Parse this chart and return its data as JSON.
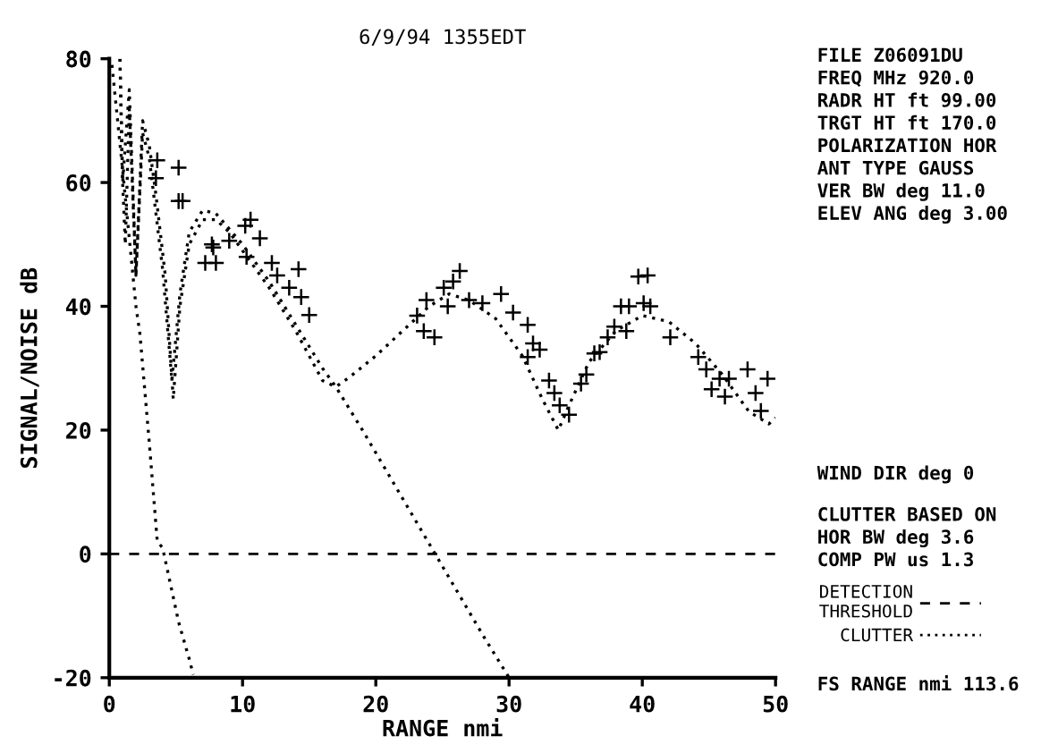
{
  "chart_data": {
    "type": "line",
    "title": "6/9/94 1355EDT",
    "xlabel": "RANGE nmi",
    "ylabel": "SIGNAL/NOISE dB",
    "xlim": [
      0,
      50
    ],
    "ylim": [
      -20,
      80
    ],
    "xticks": [
      0,
      10,
      20,
      30,
      40,
      50
    ],
    "yticks": [
      -20,
      0,
      20,
      40,
      60,
      80
    ],
    "grid": false,
    "legend": "right",
    "series": [
      {
        "color": "#000000",
        "line_style": "dotted",
        "marker": "none",
        "x": [
          0.8,
          1,
          1.2,
          1.5,
          2,
          2.5,
          3,
          3.5,
          4.2,
          4.8,
          5.3,
          6,
          7,
          8,
          9,
          10,
          12,
          14,
          16,
          17,
          18,
          20,
          22,
          24,
          25.5,
          27,
          29,
          31,
          32.5,
          33.7,
          34.5,
          36,
          38,
          40,
          42,
          44,
          46,
          48,
          49.5,
          50
        ],
        "values": [
          80,
          60,
          50,
          72,
          45,
          70,
          66,
          58,
          45,
          25,
          40,
          50,
          54,
          54,
          52,
          49,
          43,
          36,
          28,
          27,
          28.5,
          32,
          36,
          40,
          42,
          41,
          38,
          32,
          25,
          20,
          24,
          31,
          36,
          38.5,
          37.5,
          34,
          29,
          23,
          21,
          22
        ]
      },
      {
        "color": "#000000",
        "line_style": "dotted",
        "marker": "none",
        "x": [
          0.8,
          1,
          1.5,
          2,
          2.5,
          3,
          4,
          4.7,
          5.3,
          6,
          7,
          8,
          10,
          12,
          14,
          16,
          17,
          19,
          22,
          25,
          28,
          30
        ],
        "values": [
          80,
          60,
          75,
          45,
          68,
          64,
          46,
          28,
          42,
          52,
          55.5,
          55,
          50,
          44,
          37,
          30,
          27,
          20,
          9,
          -2,
          -13,
          -20
        ]
      },
      {
        "name": "CLUTTER",
        "color": "#000000",
        "line_style": "dotted",
        "marker": "none",
        "x": [
          0.2,
          1,
          2,
          2.3,
          3,
          3.6,
          4,
          4.6,
          5.2,
          6,
          6.3
        ],
        "values": [
          79,
          62,
          40,
          35.5,
          18,
          2,
          1,
          -5,
          -11,
          -17,
          -19.5
        ]
      },
      {
        "type": "scatter",
        "color": "#000000",
        "marker": "cross",
        "x": [
          3.5,
          3.6,
          5.2,
          5.2,
          5.5,
          7.2,
          7.7,
          7.8,
          8.0,
          9,
          10.2,
          10.3,
          10.6,
          11.3,
          12.2,
          12.6,
          13.5,
          14.2,
          14.4,
          15,
          23.1,
          23.6,
          23.8,
          24.4,
          25.1,
          25.4,
          25.8,
          26.3,
          27,
          28,
          29.4,
          30.3,
          31.4,
          31.4,
          31.8,
          32.3,
          33,
          33.4,
          33.8,
          34.5,
          35.4,
          35.8,
          36.4,
          36.8,
          37.4,
          37.9,
          38.4,
          38.8,
          39,
          39.7,
          40.1,
          40.4,
          40.6,
          42.1,
          44.2,
          44.8,
          45.2,
          45.8,
          46.2,
          46.5,
          47.9,
          48.5,
          48.9,
          49.4
        ],
        "values": [
          60.7,
          63.6,
          62.4,
          57,
          57,
          47,
          50,
          49.5,
          47,
          50.6,
          53,
          48,
          54,
          51,
          47,
          45,
          43,
          46,
          41.5,
          38.6,
          38.5,
          36,
          41,
          35,
          43,
          40,
          44,
          45.7,
          41,
          40.5,
          42,
          39,
          37,
          31.8,
          34,
          33,
          28,
          26,
          24,
          22.5,
          27.5,
          29,
          32.4,
          32.6,
          35,
          36.7,
          40,
          36,
          40,
          44.8,
          40.5,
          45,
          40,
          35,
          31.8,
          29.8,
          26.6,
          28.3,
          25.4,
          28.3,
          29.8,
          26,
          23.1,
          28.3
        ]
      }
    ],
    "ref_lines": [
      {
        "axis": "y",
        "value": 0,
        "label": "DETECTION THRESHOLD",
        "line_style": "dashed",
        "color": "#000000"
      }
    ],
    "annotations": [
      "FILE Z06091DU",
      "FREQ MHz 920.0",
      "RADR HT ft 99.00",
      "TRGT HT ft 170.0",
      "POLARIZATION HOR",
      "ANT TYPE GAUSS",
      "VER BW deg 11.0",
      "ELEV ANG deg 3.00",
      "WIND DIR deg 0",
      "CLUTTER BASED ON",
      "HOR BW deg 3.6",
      "COMP PW us 1.3",
      "FS RANGE nmi 113.6"
    ]
  }
}
